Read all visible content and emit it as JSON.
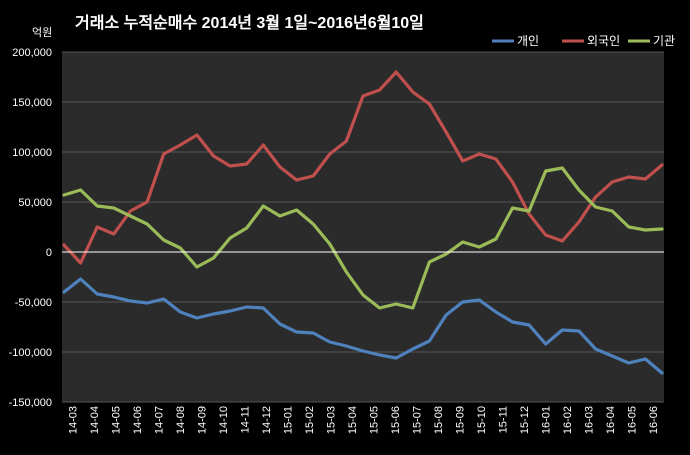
{
  "chart_data": {
    "type": "line",
    "title": "거래소 누적순매수 2014년 3월 1일~2016년6월10일",
    "unit_label": "억원",
    "ylim": [
      -150000,
      200000
    ],
    "y_ticks": [
      200000,
      150000,
      100000,
      50000,
      0,
      -50000,
      -100000,
      -150000
    ],
    "y_tick_labels": [
      "200,000",
      "150,000",
      "100,000",
      "50,000",
      "0",
      "-50,000",
      "-100,000",
      "-150,000"
    ],
    "x_tick_labels": [
      "14-03",
      "14-04",
      "14-05",
      "14-06",
      "14-07",
      "14-08",
      "14-09",
      "14-10",
      "14-11",
      "14-12",
      "15-01",
      "15-02",
      "15-03",
      "15-04",
      "15-05",
      "15-06",
      "15-07",
      "15-08",
      "15-09",
      "15-10",
      "15-11",
      "15-12",
      "16-01",
      "16-02",
      "16-03",
      "16-04",
      "16-05",
      "16-06"
    ],
    "grid": true,
    "legend_position": "top-right",
    "series": [
      {
        "name": "개인",
        "color": "#4f81bd",
        "values": [
          -40000,
          -27000,
          -42000,
          -45000,
          -49000,
          -51000,
          -47000,
          -60000,
          -66000,
          -62000,
          -59000,
          -55000,
          -56000,
          -72000,
          -80000,
          -81000,
          -90000,
          -94000,
          -99000,
          -103000,
          -106000,
          -97000,
          -89000,
          -63000,
          -50000,
          -48000,
          -60000,
          -70000,
          -73000,
          -92000,
          -78000,
          -79000,
          -97000,
          -104000,
          -111000,
          -107000,
          -121000
        ]
      },
      {
        "name": "외국인",
        "color": "#c0504d",
        "values": [
          7000,
          -11000,
          25000,
          18000,
          41000,
          50000,
          98000,
          107000,
          117000,
          96000,
          86000,
          88000,
          107000,
          85000,
          72000,
          76000,
          98000,
          111000,
          156000,
          162000,
          180000,
          160000,
          148000,
          120000,
          91000,
          98000,
          93000,
          70000,
          38000,
          17000,
          11000,
          30000,
          55000,
          70000,
          75000,
          73000,
          87000
        ]
      },
      {
        "name": "기관",
        "color": "#9bbb59",
        "values": [
          57000,
          62000,
          46000,
          44000,
          36000,
          28000,
          12000,
          4000,
          -15000,
          -6000,
          14000,
          24000,
          46000,
          36000,
          42000,
          28000,
          8000,
          -20000,
          -43000,
          -56000,
          -52000,
          -56000,
          -10000,
          -2000,
          10000,
          5000,
          13000,
          44000,
          41000,
          81000,
          84000,
          62000,
          45000,
          41000,
          25000,
          22000,
          23000
        ]
      }
    ]
  }
}
